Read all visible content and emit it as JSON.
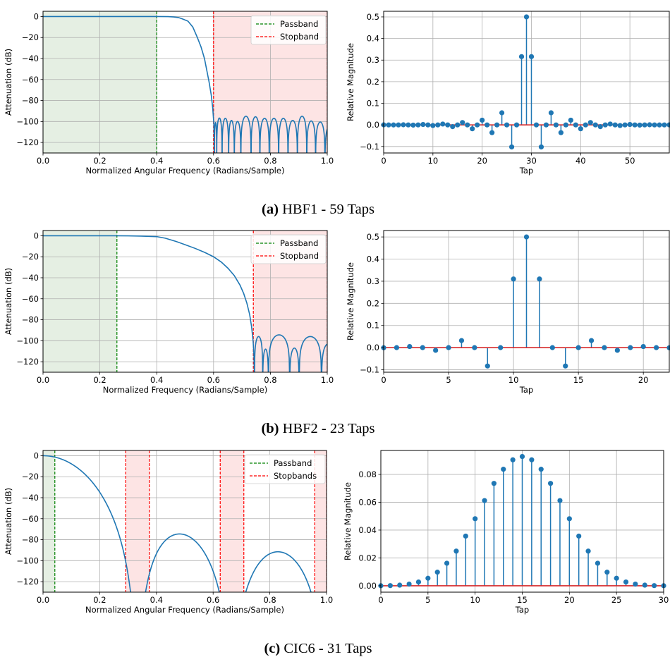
{
  "captions": [
    {
      "label": "(a)",
      "text": "HBF1 - 59 Taps"
    },
    {
      "label": "(b)",
      "text": "HBF2 - 23 Taps"
    },
    {
      "label": "(c)",
      "text": "CIC6 - 31 Taps"
    }
  ],
  "colors": {
    "line": "#1f77b4",
    "baseline": "#d62728",
    "passband": "#008000",
    "stopband": "#ff0000",
    "passband_fill": "#e5efe3",
    "stopband_fill": "#fde4e4",
    "grid": "#b0b0b0"
  },
  "chart_data": [
    {
      "type": "line",
      "xlabel": "Normalized Angular Frequency (Radians/Sample)",
      "ylabel": "Attenuation (dB)",
      "xlim": [
        0,
        1
      ],
      "ylim": [
        -130,
        5
      ],
      "grid": true,
      "xticks": [
        {
          "v": 0,
          "t": "0.0"
        },
        {
          "v": 0.2,
          "t": "0.2"
        },
        {
          "v": 0.4,
          "t": "0.4"
        },
        {
          "v": 0.6,
          "t": "0.6"
        },
        {
          "v": 0.8,
          "t": "0.8"
        },
        {
          "v": 1.0,
          "t": "1.0"
        }
      ],
      "yticks": [
        {
          "v": 0,
          "t": "0"
        },
        {
          "v": -20,
          "t": "−20"
        },
        {
          "v": -40,
          "t": "−40"
        },
        {
          "v": -60,
          "t": "−60"
        },
        {
          "v": -80,
          "t": "−80"
        },
        {
          "v": -100,
          "t": "−100"
        },
        {
          "v": -120,
          "t": "−120"
        }
      ],
      "passband": [
        [
          0,
          0.4
        ]
      ],
      "stopbands": [
        [
          0.6,
          1.0
        ]
      ],
      "legend": {
        "position": "top-right",
        "entries": [
          "Passband",
          "Stopband"
        ]
      },
      "response": [
        [
          0,
          0
        ],
        [
          0.4,
          0
        ],
        [
          0.44,
          -0.1
        ],
        [
          0.46,
          -0.4
        ],
        [
          0.477,
          -1
        ],
        [
          0.49,
          -2.2
        ],
        [
          0.51,
          -4.4
        ],
        [
          0.527,
          -10
        ],
        [
          0.543,
          -20
        ],
        [
          0.556,
          -29
        ],
        [
          0.568,
          -40
        ],
        [
          0.584,
          -62
        ],
        [
          0.592,
          -75
        ],
        [
          0.597,
          -87
        ],
        [
          0.601,
          -102
        ],
        [
          0.603,
          -120
        ],
        [
          0.604,
          -135
        ]
      ],
      "stopband_lobes": [
        {
          "from": 0.603,
          "to": 0.611,
          "peak_db": -101
        },
        {
          "from": 0.611,
          "to": 0.63,
          "peak_db": -96.7
        },
        {
          "from": 0.63,
          "to": 0.653,
          "peak_db": -97
        },
        {
          "from": 0.653,
          "to": 0.673,
          "peak_db": -99
        },
        {
          "from": 0.673,
          "to": 0.696,
          "peak_db": -100
        },
        {
          "from": 0.696,
          "to": 0.732,
          "peak_db": -95
        },
        {
          "from": 0.732,
          "to": 0.763,
          "peak_db": -95.5
        },
        {
          "from": 0.763,
          "to": 0.796,
          "peak_db": -97
        },
        {
          "from": 0.796,
          "to": 0.829,
          "peak_db": -97
        },
        {
          "from": 0.829,
          "to": 0.862,
          "peak_db": -97
        },
        {
          "from": 0.862,
          "to": 0.895,
          "peak_db": -99
        },
        {
          "from": 0.895,
          "to": 0.928,
          "peak_db": -95
        },
        {
          "from": 0.928,
          "to": 0.959,
          "peak_db": -99.5
        },
        {
          "from": 0.959,
          "to": 0.992,
          "peak_db": -100.5
        },
        {
          "from": 0.992,
          "to": 1.025,
          "peak_db": -104
        }
      ]
    },
    {
      "type": "stem",
      "xlabel": "Tap",
      "ylabel": "Relative Magnitude",
      "xlim": [
        0,
        58
      ],
      "ylim": [
        -0.13,
        0.526
      ],
      "grid": true,
      "xticks": [
        {
          "v": 0,
          "t": "0"
        },
        {
          "v": 10,
          "t": "10"
        },
        {
          "v": 20,
          "t": "20"
        },
        {
          "v": 30,
          "t": "30"
        },
        {
          "v": 40,
          "t": "40"
        },
        {
          "v": 50,
          "t": "50"
        }
      ],
      "yticks": [
        {
          "v": -0.1,
          "t": "−0.1"
        },
        {
          "v": 0,
          "t": "0.0"
        },
        {
          "v": 0.1,
          "t": "0.1"
        },
        {
          "v": 0.2,
          "t": "0.2"
        },
        {
          "v": 0.3,
          "t": "0.3"
        },
        {
          "v": 0.4,
          "t": "0.4"
        },
        {
          "v": 0.5,
          "t": "0.5"
        }
      ],
      "taps": [
        0.0001,
        0,
        -0.0003,
        0,
        0.0005,
        0,
        -0.001,
        0,
        0.002,
        0,
        -0.003,
        0,
        0.004,
        0,
        -0.008,
        0,
        0.011,
        0,
        -0.018,
        0,
        0.022,
        0,
        -0.036,
        0,
        0.056,
        0,
        -0.102,
        0,
        0.316,
        0.5,
        0.316,
        0,
        -0.102,
        0,
        0.056,
        0,
        -0.036,
        0,
        0.022,
        0,
        -0.018,
        0,
        0.011,
        0,
        -0.008,
        0,
        0.004,
        0,
        -0.003,
        0,
        0.002,
        0,
        -0.001,
        0,
        0.0005,
        0,
        -0.0003,
        0,
        0.0001
      ]
    },
    {
      "type": "line",
      "xlabel": "Normalized Frequency (Radians/Sample)",
      "ylabel": "Attenuation (dB)",
      "xlim": [
        0,
        1
      ],
      "ylim": [
        -130,
        5
      ],
      "grid": true,
      "xticks": [
        {
          "v": 0,
          "t": "0.0"
        },
        {
          "v": 0.2,
          "t": "0.2"
        },
        {
          "v": 0.4,
          "t": "0.4"
        },
        {
          "v": 0.6,
          "t": "0.6"
        },
        {
          "v": 0.8,
          "t": "0.8"
        },
        {
          "v": 1.0,
          "t": "1.0"
        }
      ],
      "yticks": [
        {
          "v": 0,
          "t": "0"
        },
        {
          "v": -20,
          "t": "−20"
        },
        {
          "v": -40,
          "t": "−40"
        },
        {
          "v": -60,
          "t": "−60"
        },
        {
          "v": -80,
          "t": "−80"
        },
        {
          "v": -100,
          "t": "−100"
        },
        {
          "v": -120,
          "t": "−120"
        }
      ],
      "passband": [
        [
          0,
          0.26
        ]
      ],
      "stopbands": [
        [
          0.74,
          1.0
        ]
      ],
      "legend": {
        "position": "top-right",
        "entries": [
          "Passband",
          "Stopband"
        ]
      },
      "response": [
        [
          0,
          0
        ],
        [
          0.25,
          0
        ],
        [
          0.3,
          -0.1
        ],
        [
          0.345,
          -0.3
        ],
        [
          0.4,
          -0.8
        ],
        [
          0.43,
          -2.3
        ],
        [
          0.469,
          -5.5
        ],
        [
          0.5,
          -8.5
        ],
        [
          0.535,
          -12
        ],
        [
          0.57,
          -16
        ],
        [
          0.6,
          -20
        ],
        [
          0.627,
          -25
        ],
        [
          0.651,
          -31
        ],
        [
          0.673,
          -38
        ],
        [
          0.693,
          -47
        ],
        [
          0.706,
          -55
        ],
        [
          0.717,
          -64
        ],
        [
          0.727,
          -75
        ],
        [
          0.734,
          -87
        ],
        [
          0.739,
          -100
        ],
        [
          0.742,
          -113
        ],
        [
          0.744,
          -135
        ]
      ],
      "stopband_lobes": [
        {
          "from": 0.744,
          "to": 0.773,
          "peak_db": -96
        },
        {
          "from": 0.773,
          "to": 0.793,
          "peak_db": -108
        },
        {
          "from": 0.793,
          "to": 0.868,
          "peak_db": -94.4
        },
        {
          "from": 0.868,
          "to": 0.901,
          "peak_db": -107
        },
        {
          "from": 0.901,
          "to": 0.98,
          "peak_db": -96
        },
        {
          "from": 0.98,
          "to": 1.027,
          "peak_db": -103
        }
      ]
    },
    {
      "type": "stem",
      "xlabel": "Tap",
      "ylabel": "Relative Magnitude",
      "xlim": [
        0,
        22
      ],
      "ylim": [
        -0.111,
        0.529
      ],
      "grid": true,
      "xticks": [
        {
          "v": 0,
          "t": "0"
        },
        {
          "v": 5,
          "t": "5"
        },
        {
          "v": 10,
          "t": "10"
        },
        {
          "v": 15,
          "t": "15"
        },
        {
          "v": 20,
          "t": "20"
        }
      ],
      "yticks": [
        {
          "v": -0.1,
          "t": "−0.1"
        },
        {
          "v": 0,
          "t": "0.0"
        },
        {
          "v": 0.1,
          "t": "0.1"
        },
        {
          "v": 0.2,
          "t": "0.2"
        },
        {
          "v": 0.3,
          "t": "0.3"
        },
        {
          "v": 0.4,
          "t": "0.4"
        },
        {
          "v": 0.5,
          "t": "0.5"
        }
      ],
      "taps": [
        -0.0005,
        0,
        0.005,
        0,
        -0.012,
        0,
        0.032,
        0,
        -0.083,
        0,
        0.31,
        0.5,
        0.31,
        0,
        -0.083,
        0,
        0.032,
        0,
        -0.012,
        0,
        0.005,
        0,
        -0.0005
      ]
    },
    {
      "type": "line",
      "xlabel": "Normalized Angular Frequency (Radians/Sample)",
      "ylabel": "Attenuation (dB)",
      "xlim": [
        0,
        1
      ],
      "ylim": [
        -130,
        5
      ],
      "grid": true,
      "xticks": [
        {
          "v": 0,
          "t": "0.0"
        },
        {
          "v": 0.2,
          "t": "0.2"
        },
        {
          "v": 0.4,
          "t": "0.4"
        },
        {
          "v": 0.6,
          "t": "0.6"
        },
        {
          "v": 0.8,
          "t": "0.8"
        },
        {
          "v": 1.0,
          "t": "1.0"
        }
      ],
      "yticks": [
        {
          "v": 0,
          "t": "0"
        },
        {
          "v": -20,
          "t": "−20"
        },
        {
          "v": -40,
          "t": "−40"
        },
        {
          "v": -60,
          "t": "−60"
        },
        {
          "v": -80,
          "t": "−80"
        },
        {
          "v": -100,
          "t": "−100"
        },
        {
          "v": -120,
          "t": "−120"
        }
      ],
      "passband": [
        [
          0,
          0.0417
        ]
      ],
      "stopbands": [
        [
          0.2917,
          0.375
        ],
        [
          0.625,
          0.7083
        ],
        [
          0.9583,
          1.0
        ]
      ],
      "legend": {
        "position": "top-right",
        "entries": [
          "Passband",
          "Stopbands"
        ]
      }
    },
    {
      "type": "stem",
      "xlabel": "Tap",
      "ylabel": "Relative Magnitude",
      "xlim": [
        0,
        30
      ],
      "ylim": [
        -0.0046,
        0.0972
      ],
      "grid": true,
      "xticks": [
        {
          "v": 0,
          "t": "0"
        },
        {
          "v": 5,
          "t": "5"
        },
        {
          "v": 10,
          "t": "10"
        },
        {
          "v": 15,
          "t": "15"
        },
        {
          "v": 20,
          "t": "20"
        },
        {
          "v": 25,
          "t": "25"
        },
        {
          "v": 30,
          "t": "30"
        }
      ],
      "yticks": [
        {
          "v": 0,
          "t": "0.00"
        },
        {
          "v": 0.02,
          "t": "0.02"
        },
        {
          "v": 0.04,
          "t": "0.04"
        },
        {
          "v": 0.06,
          "t": "0.06"
        },
        {
          "v": 0.08,
          "t": "0.08"
        }
      ],
      "taps": [
        2.143e-05,
        0.0001286,
        0.0004501,
        0.00120027,
        0.00270062,
        0.00540123,
        0.00977366,
        0.0162037,
        0.02488426,
        0.03570817,
        0.04816101,
        0.06121399,
        0.07353824,
        0.08371914,
        0.09047068,
        0.09284979,
        0.09047068,
        0.08371914,
        0.07353824,
        0.06121399,
        0.04816101,
        0.03570817,
        0.02488426,
        0.0162037,
        0.00977366,
        0.00540123,
        0.00270062,
        0.00120027,
        0.0004501,
        0.0001286,
        2.143e-05
      ]
    }
  ]
}
